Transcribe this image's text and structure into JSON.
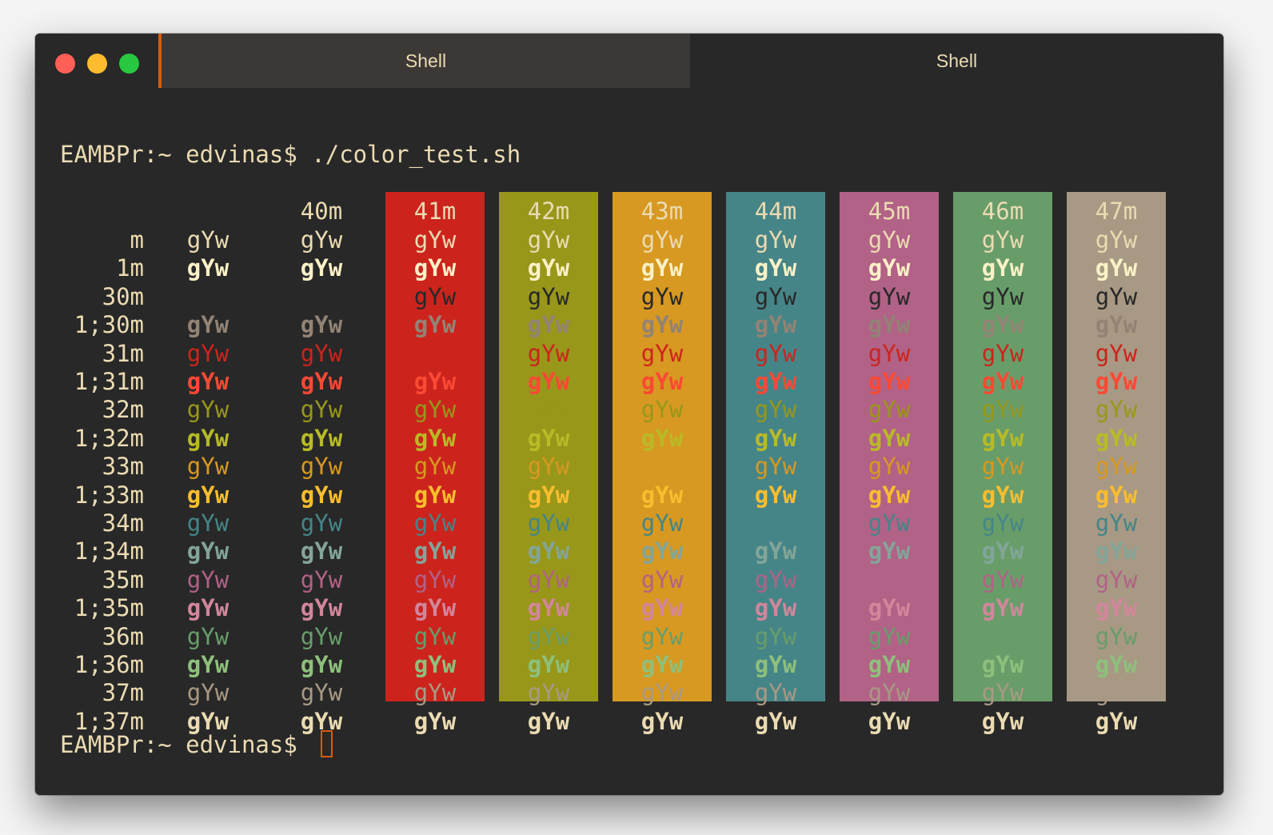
{
  "window": {
    "tabs": [
      {
        "label": "Shell",
        "active": true
      },
      {
        "label": "Shell",
        "active": false
      }
    ]
  },
  "terminal": {
    "command_line": "EAMBPr:~ edvinas$ ./color_test.sh",
    "prompt_line": "EAMBPr:~ edvinas$ ",
    "sample_text": "gYw",
    "background_headers": [
      "",
      "40m",
      "41m",
      "42m",
      "43m",
      "44m",
      "45m",
      "46m",
      "47m"
    ],
    "background_colors": [
      "#282828",
      "#282828",
      "#cc241d",
      "#98971a",
      "#d79921",
      "#458588",
      "#b16286",
      "#689d6a",
      "#a89984"
    ],
    "rows": [
      {
        "label": "m",
        "color": "#ebdbb2",
        "bold": false
      },
      {
        "label": "1m",
        "color": "#fbf1c7",
        "bold": true
      },
      {
        "label": "30m",
        "color": "#282828",
        "bold": false
      },
      {
        "label": "1;30m",
        "color": "#928374",
        "bold": true
      },
      {
        "label": "31m",
        "color": "#cc241d",
        "bold": false
      },
      {
        "label": "1;31m",
        "color": "#fb4934",
        "bold": true
      },
      {
        "label": "32m",
        "color": "#98971a",
        "bold": false
      },
      {
        "label": "1;32m",
        "color": "#b8bb26",
        "bold": true
      },
      {
        "label": "33m",
        "color": "#d79921",
        "bold": false
      },
      {
        "label": "1;33m",
        "color": "#fabd2f",
        "bold": true
      },
      {
        "label": "34m",
        "color": "#458588",
        "bold": false
      },
      {
        "label": "1;34m",
        "color": "#83a598",
        "bold": true
      },
      {
        "label": "35m",
        "color": "#b16286",
        "bold": false
      },
      {
        "label": "1;35m",
        "color": "#d3869b",
        "bold": true
      },
      {
        "label": "36m",
        "color": "#689d6a",
        "bold": false
      },
      {
        "label": "1;36m",
        "color": "#8ec07c",
        "bold": true
      },
      {
        "label": "37m",
        "color": "#a89984",
        "bold": false
      },
      {
        "label": "1;37m",
        "color": "#ebdbb2",
        "bold": true
      }
    ]
  }
}
